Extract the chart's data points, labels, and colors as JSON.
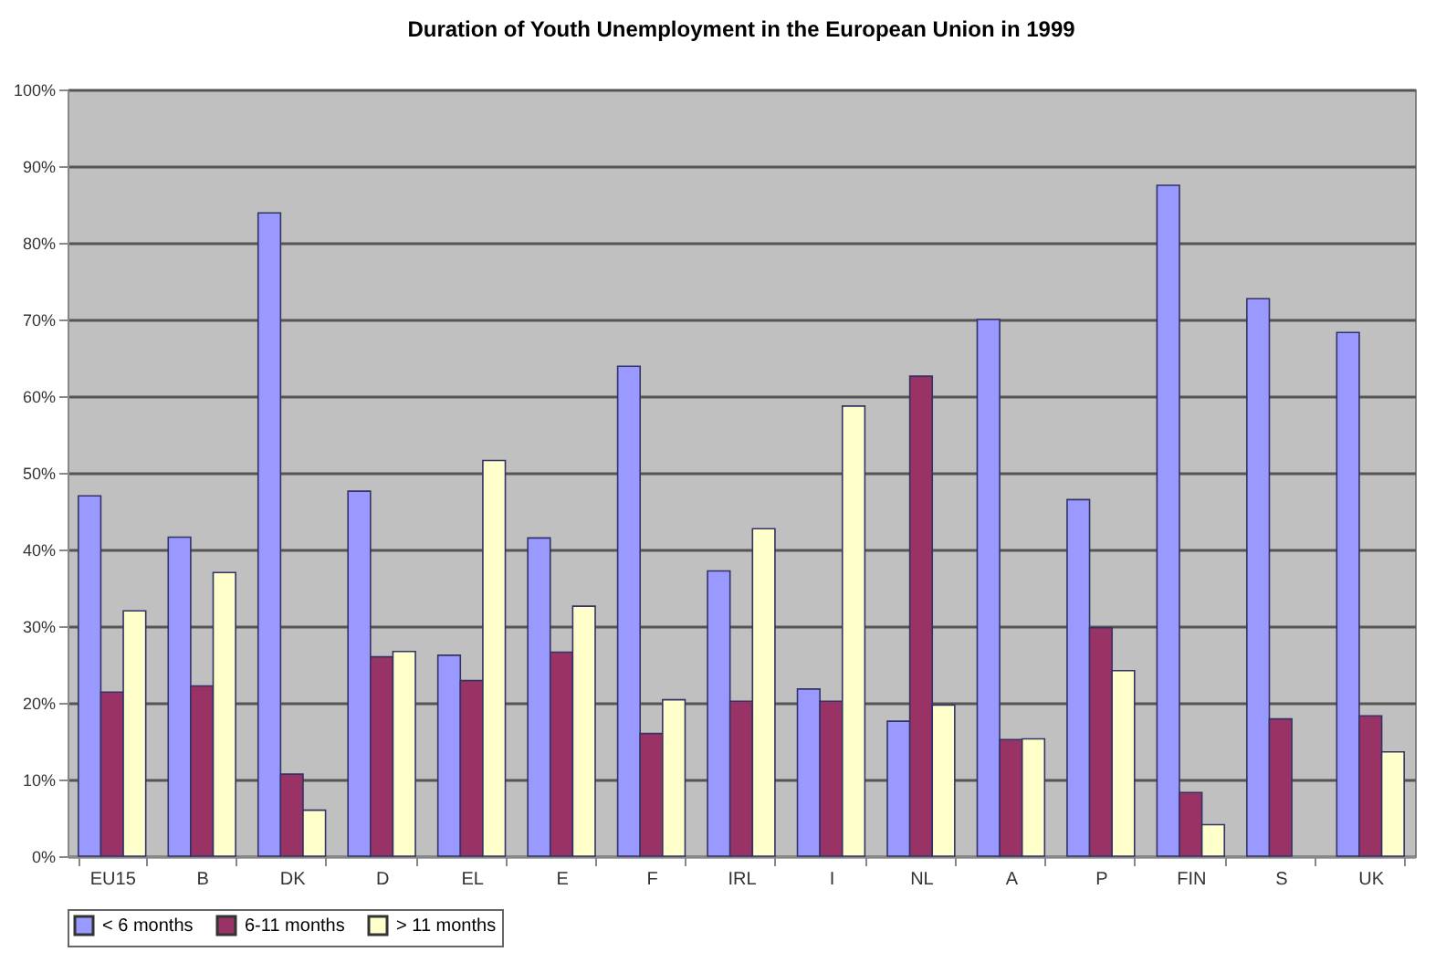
{
  "chart_data": {
    "type": "bar",
    "title": "Duration of Youth Unemployment in the European Union in 1999",
    "categories": [
      "EU15",
      "B",
      "DK",
      "D",
      "EL",
      "E",
      "F",
      "IRL",
      "I",
      "NL",
      "A",
      "P",
      "FIN",
      "S",
      "UK"
    ],
    "series": [
      {
        "name": "< 6 months",
        "color": "#9999ff",
        "values": [
          47,
          41.6,
          83.9,
          47.6,
          26.2,
          41.5,
          63.9,
          37.2,
          21.8,
          17.6,
          70,
          46.5,
          87.5,
          72.7,
          68.3
        ]
      },
      {
        "name": "6-11 months",
        "color": "#993366",
        "values": [
          21.4,
          22.2,
          10.7,
          26,
          22.9,
          26.6,
          16,
          20.2,
          20.2,
          62.6,
          15.2,
          29.8,
          8.3,
          17.9,
          18.3
        ]
      },
      {
        "name": "> 11 months",
        "color": "#ffffcc",
        "values": [
          32,
          37,
          6,
          26.7,
          51.6,
          32.6,
          20.4,
          42.7,
          58.7,
          19.7,
          15.3,
          24.2,
          4.1,
          null,
          13.6
        ]
      }
    ],
    "ylim": [
      0,
      100
    ],
    "yticks": [
      {
        "value": 0,
        "label": "0%"
      },
      {
        "value": 10,
        "label": "10%"
      },
      {
        "value": 20,
        "label": "20%"
      },
      {
        "value": 30,
        "label": "30%"
      },
      {
        "value": 40,
        "label": "40%"
      },
      {
        "value": 50,
        "label": "50%"
      },
      {
        "value": 60,
        "label": "60%"
      },
      {
        "value": 70,
        "label": "70%"
      },
      {
        "value": 80,
        "label": "80%"
      },
      {
        "value": 90,
        "label": "90%"
      },
      {
        "value": 100,
        "label": "100%"
      }
    ],
    "grid": "y",
    "legend": "bottom"
  }
}
